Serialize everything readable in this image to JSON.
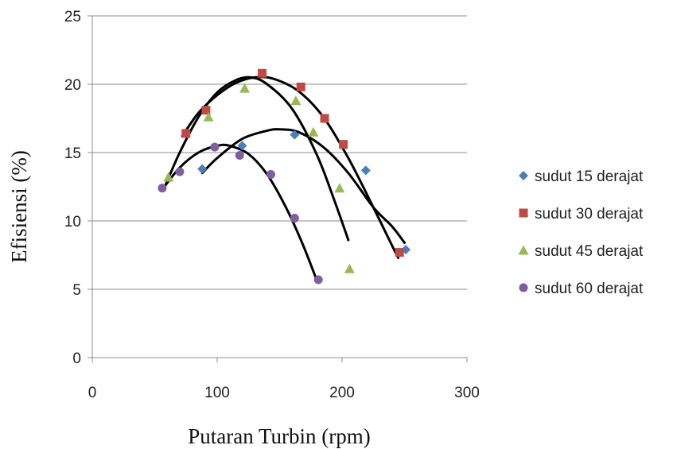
{
  "chart_data": {
    "type": "scatter",
    "xlabel": "Putaran Turbin (rpm)",
    "ylabel": "Efisiensi (%)",
    "xlim": [
      0,
      300
    ],
    "ylim": [
      0,
      25
    ],
    "xticks": [
      "0",
      "100",
      "200",
      "300"
    ],
    "yticks": [
      "0",
      "5",
      "10",
      "15",
      "20",
      "25"
    ],
    "grid": "horizontal",
    "legend_position": "right",
    "series": [
      {
        "name": "sudut 15 derajat",
        "color": "#4a7ebb",
        "marker": "diamond",
        "points": [
          [
            88,
            13.8
          ],
          [
            120,
            15.5
          ],
          [
            162,
            16.3
          ],
          [
            219,
            13.7
          ],
          [
            251,
            7.9
          ]
        ],
        "trend": [
          [
            88,
            13.5
          ],
          [
            100,
            14.6
          ],
          [
            120,
            16.0
          ],
          [
            140,
            16.6
          ],
          [
            150,
            16.7
          ],
          [
            165,
            16.5
          ],
          [
            185,
            15.4
          ],
          [
            205,
            13.5
          ],
          [
            225,
            11.0
          ],
          [
            240,
            9.6
          ],
          [
            250,
            8.4
          ]
        ]
      },
      {
        "name": "sudut 30 derajat",
        "color": "#be4b48",
        "marker": "square",
        "points": [
          [
            75,
            16.4
          ],
          [
            91,
            18.1
          ],
          [
            136,
            20.8
          ],
          [
            167,
            19.8
          ],
          [
            186,
            17.5
          ],
          [
            201,
            15.6
          ],
          [
            246,
            7.7
          ]
        ],
        "trend": [
          [
            72,
            16.2
          ],
          [
            85,
            17.9
          ],
          [
            100,
            19.2
          ],
          [
            115,
            20.1
          ],
          [
            130,
            20.5
          ],
          [
            145,
            20.4
          ],
          [
            165,
            19.5
          ],
          [
            185,
            17.6
          ],
          [
            205,
            14.6
          ],
          [
            225,
            11.0
          ],
          [
            240,
            8.2
          ],
          [
            245,
            7.3
          ]
        ]
      },
      {
        "name": "sudut 45 derajat",
        "color": "#98b954",
        "marker": "triangle",
        "points": [
          [
            61,
            13.2
          ],
          [
            93,
            17.6
          ],
          [
            122,
            19.7
          ],
          [
            163,
            18.8
          ],
          [
            177,
            16.5
          ],
          [
            198,
            12.4
          ],
          [
            206,
            6.5
          ]
        ],
        "trend": [
          [
            59,
            12.7
          ],
          [
            70,
            15.0
          ],
          [
            85,
            17.6
          ],
          [
            100,
            19.4
          ],
          [
            115,
            20.3
          ],
          [
            127,
            20.5
          ],
          [
            140,
            20.0
          ],
          [
            160,
            18.2
          ],
          [
            180,
            14.8
          ],
          [
            195,
            11.2
          ],
          [
            205,
            8.6
          ]
        ]
      },
      {
        "name": "sudut 60 derajat",
        "color": "#7d5fa0",
        "marker": "circle",
        "points": [
          [
            56,
            12.4
          ],
          [
            70,
            13.6
          ],
          [
            98,
            15.4
          ],
          [
            118,
            14.8
          ],
          [
            143,
            13.4
          ],
          [
            162,
            10.2
          ],
          [
            181,
            5.7
          ]
        ],
        "trend": [
          [
            56,
            12.3
          ],
          [
            70,
            13.9
          ],
          [
            85,
            15.0
          ],
          [
            100,
            15.5
          ],
          [
            110,
            15.5
          ],
          [
            125,
            14.9
          ],
          [
            140,
            13.4
          ],
          [
            155,
            11.0
          ],
          [
            168,
            8.4
          ],
          [
            180,
            5.6
          ]
        ]
      }
    ]
  }
}
